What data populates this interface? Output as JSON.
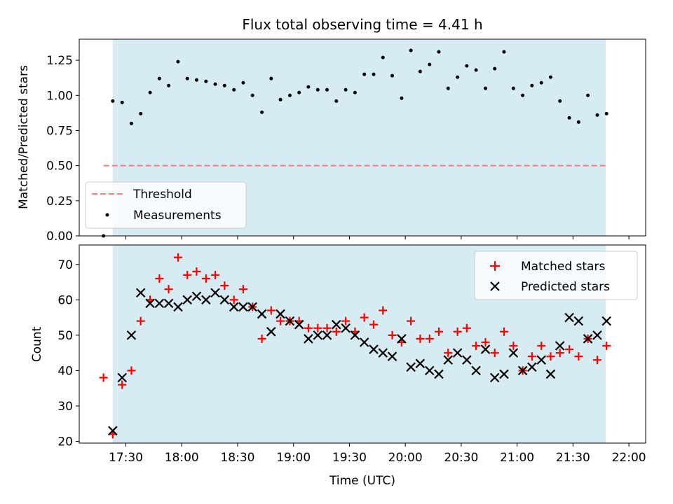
{
  "chart_data": [
    {
      "type": "scatter",
      "title": "Flux total observing time = 4.41 h",
      "xlabel": "",
      "ylabel": "Matched/Predicted stars",
      "xlim": [
        17.083,
        22.15
      ],
      "ylim": [
        0.0,
        1.4
      ],
      "yticks": [
        0.0,
        0.25,
        0.5,
        0.75,
        1.0,
        1.25
      ],
      "ytick_labels": [
        "0.00",
        "0.25",
        "0.50",
        "0.75",
        "1.00",
        "1.25"
      ],
      "observing_window": [
        17.383,
        21.792
      ],
      "threshold": {
        "label": "Threshold",
        "value": 0.5,
        "x_range": [
          17.3,
          21.792
        ],
        "color": "#f08080"
      },
      "legend": {
        "position": "lower-left",
        "entries": [
          "Threshold",
          "Measurements"
        ]
      },
      "series": [
        {
          "name": "Measurements",
          "color": "#000000",
          "x": [
            17.3,
            17.383,
            17.467,
            17.55,
            17.633,
            17.717,
            17.8,
            17.883,
            17.967,
            18.05,
            18.133,
            18.217,
            18.3,
            18.383,
            18.467,
            18.55,
            18.633,
            18.717,
            18.8,
            18.883,
            18.967,
            19.05,
            19.133,
            19.217,
            19.3,
            19.383,
            19.467,
            19.55,
            19.633,
            19.717,
            19.8,
            19.883,
            19.967,
            20.05,
            20.133,
            20.217,
            20.3,
            20.383,
            20.467,
            20.55,
            20.633,
            20.717,
            20.8,
            20.883,
            20.967,
            21.05,
            21.133,
            21.217,
            21.3,
            21.383,
            21.467,
            21.55,
            21.633,
            21.717,
            21.8
          ],
          "y": [
            0.0,
            0.96,
            0.95,
            0.8,
            0.87,
            1.02,
            1.12,
            1.07,
            1.24,
            1.12,
            1.11,
            1.1,
            1.08,
            1.07,
            1.04,
            1.09,
            1.0,
            0.88,
            1.12,
            0.97,
            1.0,
            1.02,
            1.06,
            1.04,
            1.04,
            0.96,
            1.04,
            1.02,
            1.15,
            1.15,
            1.27,
            1.14,
            0.98,
            1.32,
            1.17,
            1.22,
            1.31,
            1.05,
            1.13,
            1.21,
            1.18,
            1.05,
            1.19,
            1.31,
            1.05,
            1.0,
            1.07,
            1.09,
            1.13,
            0.96,
            0.84,
            0.81,
            1.0,
            0.86,
            0.87
          ]
        }
      ]
    },
    {
      "type": "scatter",
      "title": "",
      "xlabel": "Time (UTC)",
      "ylabel": "Count",
      "xlim": [
        17.083,
        22.15
      ],
      "ylim": [
        19.5,
        75.5
      ],
      "yticks": [
        20,
        30,
        40,
        50,
        60,
        70
      ],
      "ytick_labels": [
        "20",
        "30",
        "40",
        "50",
        "60",
        "70"
      ],
      "xticks": [
        17.5,
        18.0,
        18.5,
        19.0,
        19.5,
        20.0,
        20.5,
        21.0,
        21.5,
        22.0
      ],
      "xtick_labels": [
        "17:30",
        "18:00",
        "18:30",
        "19:00",
        "19:30",
        "20:00",
        "20:30",
        "21:00",
        "21:30",
        "22:00"
      ],
      "observing_window": [
        17.383,
        21.792
      ],
      "legend": {
        "position": "top-right",
        "entries": [
          "Matched stars",
          "Predicted stars"
        ]
      },
      "series": [
        {
          "name": "Matched stars",
          "color": "#ff0000",
          "marker": "+",
          "x": [
            17.3,
            17.383,
            17.467,
            17.55,
            17.633,
            17.717,
            17.8,
            17.883,
            17.967,
            18.05,
            18.133,
            18.217,
            18.3,
            18.383,
            18.467,
            18.55,
            18.633,
            18.717,
            18.8,
            18.883,
            18.967,
            19.05,
            19.133,
            19.217,
            19.3,
            19.383,
            19.467,
            19.55,
            19.633,
            19.717,
            19.8,
            19.883,
            19.967,
            20.05,
            20.133,
            20.217,
            20.3,
            20.383,
            20.467,
            20.55,
            20.633,
            20.717,
            20.8,
            20.883,
            20.967,
            21.05,
            21.133,
            21.217,
            21.3,
            21.383,
            21.467,
            21.55,
            21.633,
            21.717,
            21.8
          ],
          "y": [
            38,
            22,
            36,
            40,
            54,
            60,
            66,
            63,
            72,
            67,
            68,
            66,
            67,
            64,
            60,
            63,
            58,
            49,
            57,
            54,
            54,
            54,
            52,
            52,
            52,
            51,
            54,
            51,
            55,
            53,
            57,
            50,
            48,
            54,
            49,
            49,
            51,
            45,
            51,
            52,
            47,
            48,
            45,
            51,
            47,
            40,
            44,
            47,
            44,
            45,
            46,
            44,
            49,
            43,
            47
          ]
        },
        {
          "name": "Predicted stars",
          "color": "#000000",
          "marker": "x",
          "x": [
            17.383,
            17.467,
            17.55,
            17.633,
            17.717,
            17.8,
            17.883,
            17.967,
            18.05,
            18.133,
            18.217,
            18.3,
            18.383,
            18.467,
            18.55,
            18.633,
            18.717,
            18.8,
            18.883,
            18.967,
            19.05,
            19.133,
            19.217,
            19.3,
            19.383,
            19.467,
            19.55,
            19.633,
            19.717,
            19.8,
            19.883,
            19.967,
            20.05,
            20.133,
            20.217,
            20.3,
            20.383,
            20.467,
            20.55,
            20.633,
            20.717,
            20.8,
            20.883,
            20.967,
            21.05,
            21.133,
            21.217,
            21.3,
            21.383,
            21.467,
            21.55,
            21.633,
            21.717,
            21.8
          ],
          "y": [
            23,
            38,
            50,
            62,
            59,
            59,
            59,
            58,
            60,
            61,
            60,
            62,
            60,
            58,
            58,
            58,
            56,
            51,
            56,
            54,
            53,
            49,
            50,
            50,
            53,
            52,
            50,
            48,
            46,
            45,
            44,
            49,
            41,
            42,
            40,
            39,
            43,
            45,
            43,
            40,
            46,
            38,
            39,
            45,
            40,
            41,
            43,
            39,
            47,
            55,
            54,
            49,
            50,
            54
          ]
        }
      ]
    }
  ]
}
